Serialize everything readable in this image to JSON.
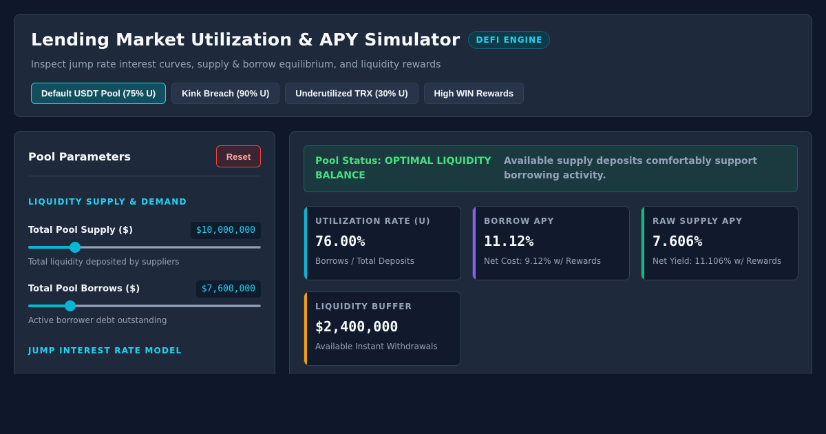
{
  "header": {
    "title": "Lending Market Utilization & APY Simulator",
    "badge": "DEFI ENGINE",
    "subtitle": "Inspect jump rate interest curves, supply & borrow equilibrium, and liquidity rewards",
    "presets": [
      {
        "label": "Default USDT Pool (75% U)",
        "active": true
      },
      {
        "label": "Kink Breach (90% U)",
        "active": false
      },
      {
        "label": "Underutilized TRX (30% U)",
        "active": false
      },
      {
        "label": "High WIN Rewards",
        "active": false
      }
    ]
  },
  "params": {
    "title": "Pool Parameters",
    "reset_label": "Reset",
    "section_supply": "LIQUIDITY SUPPLY & DEMAND",
    "supply": {
      "label": "Total Pool Supply ($)",
      "value": "$10,000,000",
      "help": "Total liquidity deposited by suppliers",
      "slider_fraction": 0.2
    },
    "borrows": {
      "label": "Total Pool Borrows ($)",
      "value": "$7,600,000",
      "help": "Active borrower debt outstanding",
      "slider_fraction": 0.18
    },
    "section_rate": "JUMP INTEREST RATE MODEL"
  },
  "status": {
    "title": "Pool Status: OPTIMAL LIQUIDITY BALANCE",
    "description": "Available supply deposits comfortably support borrowing activity."
  },
  "metrics": [
    {
      "label": "UTILIZATION RATE (U)",
      "value": "76.00%",
      "sub": "Borrows / Total Deposits",
      "color": "#06b6d4"
    },
    {
      "label": "BORROW APY",
      "value": "11.12%",
      "sub": "Net Cost: 9.12% w/ Rewards",
      "color": "#8b5cf6"
    },
    {
      "label": "RAW SUPPLY APY",
      "value": "7.606%",
      "sub": "Net Yield: 11.106% w/ Rewards",
      "color": "#10b981"
    },
    {
      "label": "LIQUIDITY BUFFER",
      "value": "$2,400,000",
      "sub": "Available Instant Withdrawals",
      "color": "#f59e0b"
    }
  ]
}
